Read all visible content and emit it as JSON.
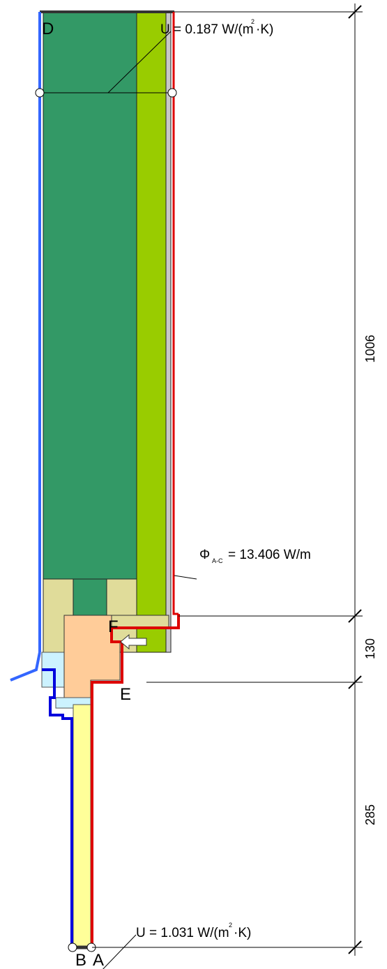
{
  "points": {
    "a": "A",
    "b": "B",
    "d": "D",
    "e": "E",
    "f": "F"
  },
  "annotations": {
    "u_wall": {
      "main": "U = 0.187 W/(m",
      "sup": "2",
      "end": "·K)"
    },
    "u_window": {
      "main": "U = 1.031 W/(m",
      "sup": "2",
      "end": "·K)"
    },
    "flux": {
      "symbol": "Φ",
      "sub": "A-C",
      "main": "= 13.406 W/m"
    }
  },
  "dimensions": [
    "1006",
    "130",
    "285"
  ]
}
